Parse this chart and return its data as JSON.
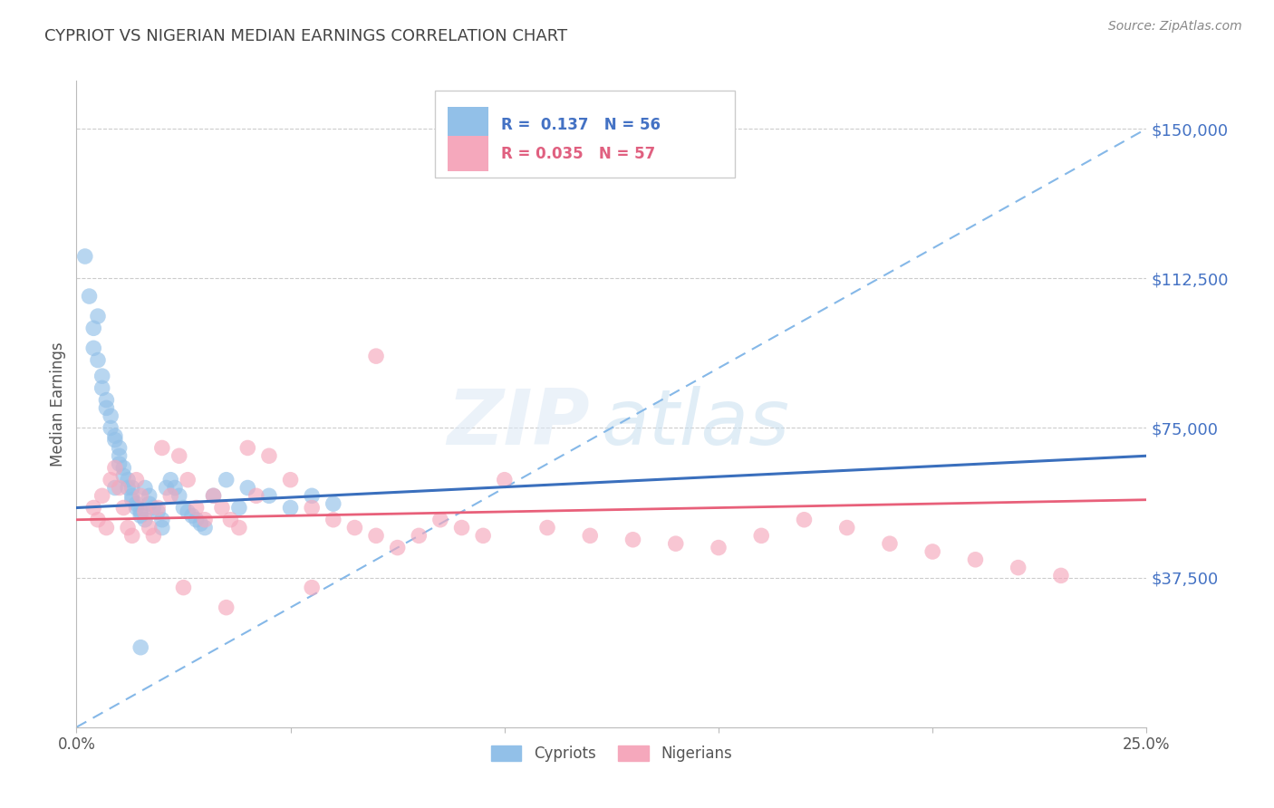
{
  "title": "CYPRIOT VS NIGERIAN MEDIAN EARNINGS CORRELATION CHART",
  "source": "Source: ZipAtlas.com",
  "ylabel": "Median Earnings",
  "y_ticks": [
    0,
    37500,
    75000,
    112500,
    150000
  ],
  "y_tick_labels": [
    "",
    "$37,500",
    "$75,000",
    "$112,500",
    "$150,000"
  ],
  "x_min": 0.0,
  "x_max": 25.0,
  "y_min": 0,
  "y_max": 162000,
  "cypriot_color": "#92C0E8",
  "nigerian_color": "#F5A8BC",
  "cypriot_line_color": "#3A6FBD",
  "nigerian_line_color": "#E8607A",
  "dashed_line_color": "#85B8E8",
  "legend_r1": "R =  0.137",
  "legend_n1": "N = 56",
  "legend_r2": "R = 0.035",
  "legend_n2": "N = 57",
  "legend_label1": "Cypriots",
  "legend_label2": "Nigerians",
  "title_color": "#444444",
  "axis_label_color": "#555555",
  "tick_label_color": "#4472C4",
  "grid_color": "#CCCCCC",
  "watermark_zip": "ZIP",
  "watermark_atlas": "atlas",
  "cypriot_x": [
    0.2,
    0.3,
    0.4,
    0.4,
    0.5,
    0.5,
    0.6,
    0.6,
    0.7,
    0.7,
    0.8,
    0.8,
    0.9,
    0.9,
    1.0,
    1.0,
    1.0,
    1.1,
    1.1,
    1.2,
    1.2,
    1.3,
    1.3,
    1.3,
    1.4,
    1.4,
    1.5,
    1.5,
    1.6,
    1.6,
    1.7,
    1.7,
    1.8,
    1.9,
    2.0,
    2.0,
    2.1,
    2.2,
    2.3,
    2.4,
    2.5,
    2.6,
    2.7,
    2.8,
    2.9,
    3.0,
    3.2,
    3.5,
    3.8,
    4.0,
    4.5,
    5.0,
    5.5,
    6.0,
    1.5,
    0.9
  ],
  "cypriot_y": [
    118000,
    108000,
    100000,
    95000,
    103000,
    92000,
    88000,
    85000,
    82000,
    80000,
    78000,
    75000,
    73000,
    72000,
    70000,
    68000,
    66000,
    65000,
    63000,
    62000,
    60000,
    60000,
    58000,
    57000,
    56000,
    55000,
    54000,
    53000,
    52000,
    60000,
    58000,
    56000,
    55000,
    54000,
    52000,
    50000,
    60000,
    62000,
    60000,
    58000,
    55000,
    54000,
    53000,
    52000,
    51000,
    50000,
    58000,
    62000,
    55000,
    60000,
    58000,
    55000,
    58000,
    56000,
    20000,
    60000
  ],
  "nigerian_x": [
    0.4,
    0.5,
    0.6,
    0.7,
    0.8,
    0.9,
    1.0,
    1.1,
    1.2,
    1.3,
    1.4,
    1.5,
    1.6,
    1.7,
    1.8,
    1.9,
    2.0,
    2.2,
    2.4,
    2.6,
    2.8,
    3.0,
    3.2,
    3.4,
    3.6,
    3.8,
    4.0,
    4.2,
    4.5,
    5.0,
    5.5,
    6.0,
    6.5,
    7.0,
    7.5,
    8.0,
    8.5,
    9.0,
    9.5,
    10.0,
    11.0,
    12.0,
    13.0,
    14.0,
    15.0,
    16.0,
    17.0,
    18.0,
    19.0,
    20.0,
    21.0,
    22.0,
    23.0,
    3.5,
    5.5,
    2.5,
    7.0
  ],
  "nigerian_y": [
    55000,
    52000,
    58000,
    50000,
    62000,
    65000,
    60000,
    55000,
    50000,
    48000,
    62000,
    58000,
    54000,
    50000,
    48000,
    55000,
    70000,
    58000,
    68000,
    62000,
    55000,
    52000,
    58000,
    55000,
    52000,
    50000,
    70000,
    58000,
    68000,
    62000,
    55000,
    52000,
    50000,
    48000,
    45000,
    48000,
    52000,
    50000,
    48000,
    62000,
    50000,
    48000,
    47000,
    46000,
    45000,
    48000,
    52000,
    50000,
    46000,
    44000,
    42000,
    40000,
    38000,
    30000,
    35000,
    35000,
    93000
  ]
}
